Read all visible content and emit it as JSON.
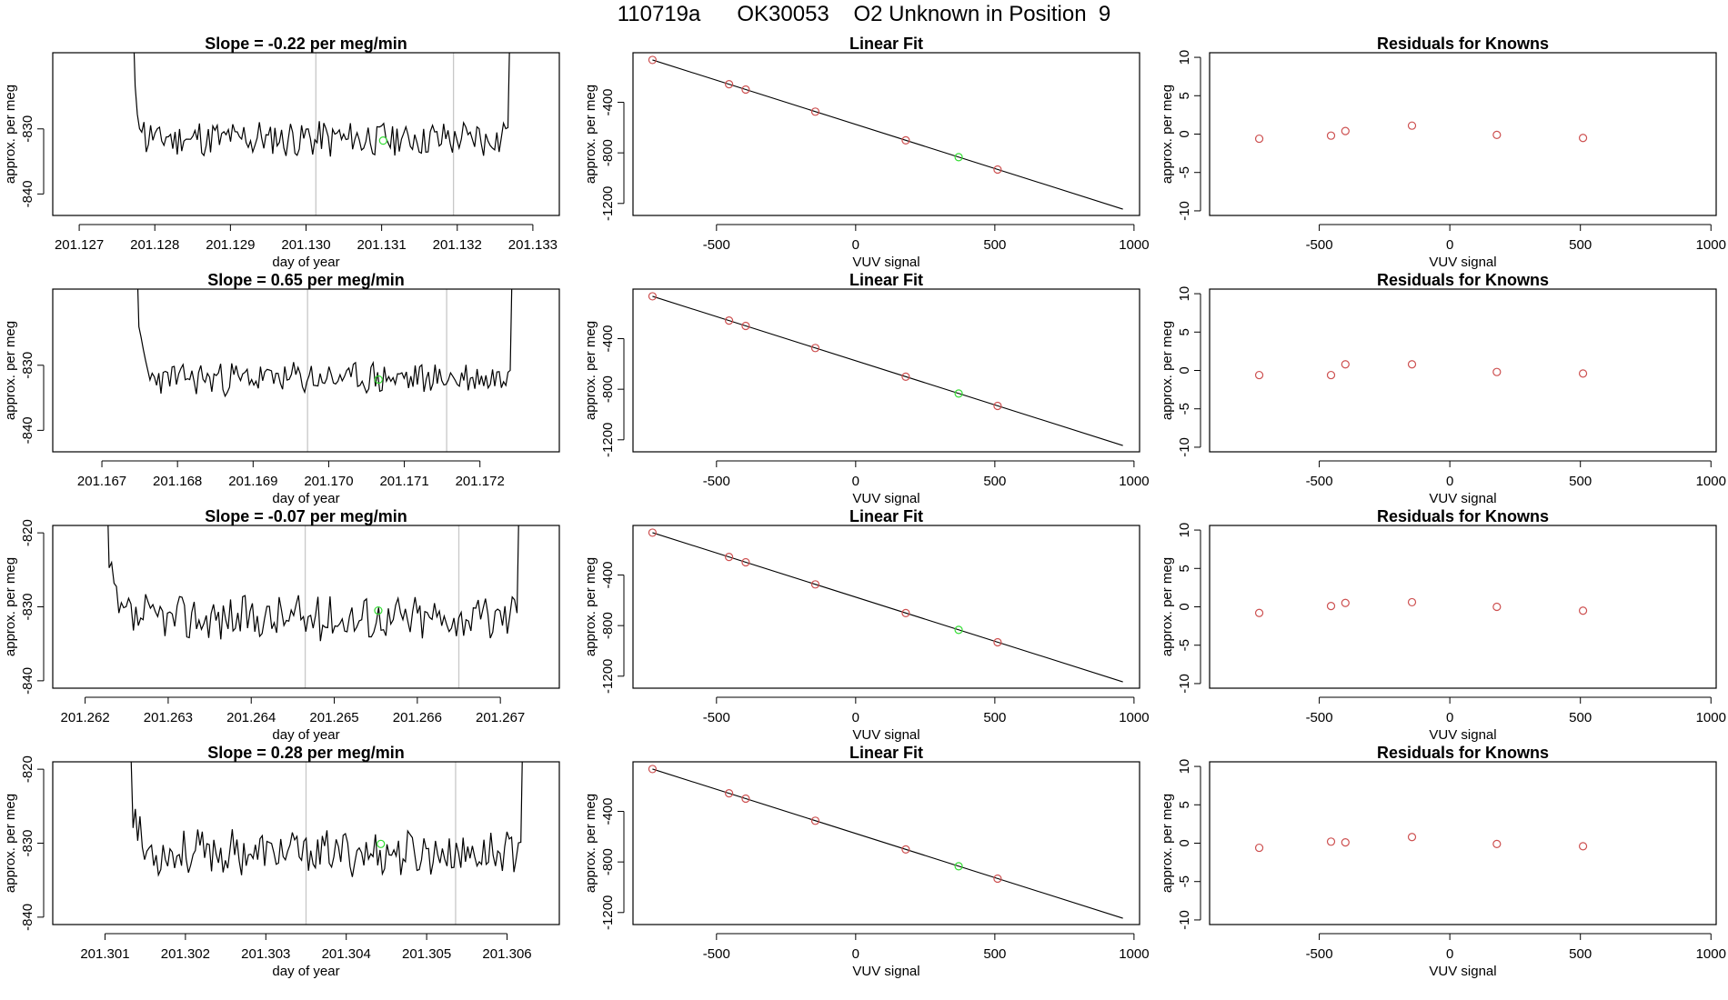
{
  "page_title": "110719a      OK30053    O2 Unknown in Position  9",
  "colors": {
    "line": "#000000",
    "box": "#000000",
    "vline": "#c8c8c8",
    "known": "#cd5050",
    "unknown": "#33dd33"
  },
  "chart_data": [
    {
      "id": "r1-ts",
      "type": "line",
      "title": "Slope =  -0.22  per meg/min",
      "xlabel": "day of year",
      "ylabel": "approx. per meg",
      "xlim": [
        201.12665,
        201.13335
      ],
      "ylim": [
        -843.3,
        -818.3
      ],
      "xticks": [
        {
          "v": 201.127,
          "t": "201.127"
        },
        {
          "v": 201.128,
          "t": "201.128"
        },
        {
          "v": 201.129,
          "t": "201.129"
        },
        {
          "v": 201.13,
          "t": "201.130"
        },
        {
          "v": 201.131,
          "t": "201.131"
        },
        {
          "v": 201.132,
          "t": "201.132"
        },
        {
          "v": 201.133,
          "t": "201.133"
        }
      ],
      "yticks": [
        {
          "v": -830,
          "t": "-830"
        },
        {
          "v": -840,
          "t": "-840"
        }
      ],
      "vlines": [
        201.13013,
        201.13195
      ],
      "x_start": 201.12771,
      "x_end": 201.1327,
      "y_top_start": -812,
      "y_top_end": -812,
      "baseline": -831.5,
      "amp": 2.6,
      "seed": 11,
      "marker": {
        "x": 201.13102,
        "y": -831.8
      }
    },
    {
      "id": "r1-fit",
      "type": "scatter",
      "title": "Linear Fit",
      "xlabel": "VUV signal",
      "ylabel": "approx. per meg",
      "xlim": [
        -800,
        1020
      ],
      "ylim": [
        -1295,
        -8
      ],
      "xticks": [
        {
          "v": -500,
          "t": "-500"
        },
        {
          "v": 0,
          "t": "0"
        },
        {
          "v": 500,
          "t": "500"
        },
        {
          "v": 1000,
          "t": "1000"
        }
      ],
      "yticks": [
        {
          "v": -400,
          "t": "-400"
        },
        {
          "v": -800,
          "t": "-800"
        },
        {
          "v": -1200,
          "t": "-1200"
        }
      ],
      "fit": {
        "x1": -730,
        "y1": -65,
        "x2": 960,
        "y2": -1245
      },
      "points": [
        {
          "x": -730,
          "y": -65
        },
        {
          "x": -455,
          "y": -257
        },
        {
          "x": -395,
          "y": -299
        },
        {
          "x": -145,
          "y": -474
        },
        {
          "x": 180,
          "y": -701
        },
        {
          "x": 510,
          "y": -932
        }
      ],
      "unknown": {
        "x": 370,
        "y": -834
      }
    },
    {
      "id": "r1-res",
      "type": "scatter",
      "title": "Residuals for Knowns",
      "xlabel": "VUV signal",
      "ylabel": "approx. per meg",
      "xlim": [
        -920,
        1020
      ],
      "ylim": [
        -10.6,
        10.6
      ],
      "xticks": [
        {
          "v": -500,
          "t": "-500"
        },
        {
          "v": 0,
          "t": "0"
        },
        {
          "v": 500,
          "t": "500"
        },
        {
          "v": 1000,
          "t": "1000"
        }
      ],
      "yticks": [
        {
          "v": 10,
          "t": "10"
        },
        {
          "v": 5,
          "t": "5"
        },
        {
          "v": 0,
          "t": "0"
        },
        {
          "v": -5,
          "t": "-5"
        },
        {
          "v": -10,
          "t": "-10"
        }
      ],
      "points": [
        {
          "x": -730,
          "y": -0.6
        },
        {
          "x": -455,
          "y": -0.2
        },
        {
          "x": -400,
          "y": 0.4
        },
        {
          "x": -145,
          "y": 1.1
        },
        {
          "x": 180,
          "y": -0.1
        },
        {
          "x": 510,
          "y": -0.5
        }
      ]
    },
    {
      "id": "r2-ts",
      "type": "line",
      "title": "Slope =  0.65  per meg/min",
      "xlabel": "day of year",
      "ylabel": "approx. per meg",
      "xlim": [
        201.16635,
        201.17305
      ],
      "ylim": [
        -843.3,
        -818.3
      ],
      "xticks": [
        {
          "v": 201.167,
          "t": "201.167"
        },
        {
          "v": 201.168,
          "t": "201.168"
        },
        {
          "v": 201.169,
          "t": "201.169"
        },
        {
          "v": 201.17,
          "t": "201.170"
        },
        {
          "v": 201.171,
          "t": "201.171"
        },
        {
          "v": 201.172,
          "t": "201.172"
        }
      ],
      "yticks": [
        {
          "v": -830,
          "t": "-830"
        },
        {
          "v": -840,
          "t": "-840"
        }
      ],
      "vlines": [
        201.16972,
        201.17156
      ],
      "x_start": 201.16746,
      "x_end": 201.17243,
      "y_top_start": -812,
      "y_top_end": -812,
      "baseline": -832.0,
      "amp": 2.2,
      "seed": 23,
      "marker": {
        "x": 201.17066,
        "y": -832.2
      }
    },
    {
      "id": "r2-fit",
      "type": "scatter",
      "title": "Linear Fit",
      "xlabel": "VUV signal",
      "ylabel": "approx. per meg",
      "xlim": [
        -800,
        1020
      ],
      "ylim": [
        -1295,
        -8
      ],
      "xticks": [
        {
          "v": -500,
          "t": "-500"
        },
        {
          "v": 0,
          "t": "0"
        },
        {
          "v": 500,
          "t": "500"
        },
        {
          "v": 1000,
          "t": "1000"
        }
      ],
      "yticks": [
        {
          "v": -400,
          "t": "-400"
        },
        {
          "v": -800,
          "t": "-800"
        },
        {
          "v": -1200,
          "t": "-1200"
        }
      ],
      "fit": {
        "x1": -730,
        "y1": -65,
        "x2": 960,
        "y2": -1245
      },
      "points": [
        {
          "x": -730,
          "y": -65
        },
        {
          "x": -455,
          "y": -257
        },
        {
          "x": -395,
          "y": -299
        },
        {
          "x": -145,
          "y": -474
        },
        {
          "x": 180,
          "y": -701
        },
        {
          "x": 510,
          "y": -932
        }
      ],
      "unknown": {
        "x": 370,
        "y": -834
      }
    },
    {
      "id": "r2-res",
      "type": "scatter",
      "title": "Residuals for Knowns",
      "xlabel": "VUV signal",
      "ylabel": "approx. per meg",
      "xlim": [
        -920,
        1020
      ],
      "ylim": [
        -10.6,
        10.6
      ],
      "xticks": [
        {
          "v": -500,
          "t": "-500"
        },
        {
          "v": 0,
          "t": "0"
        },
        {
          "v": 500,
          "t": "500"
        },
        {
          "v": 1000,
          "t": "1000"
        }
      ],
      "yticks": [
        {
          "v": 10,
          "t": "10"
        },
        {
          "v": 5,
          "t": "5"
        },
        {
          "v": 0,
          "t": "0"
        },
        {
          "v": -5,
          "t": "-5"
        },
        {
          "v": -10,
          "t": "-10"
        }
      ],
      "points": [
        {
          "x": -730,
          "y": -0.6
        },
        {
          "x": -455,
          "y": -0.6
        },
        {
          "x": -400,
          "y": 0.8
        },
        {
          "x": -145,
          "y": 0.8
        },
        {
          "x": 180,
          "y": -0.2
        },
        {
          "x": 510,
          "y": -0.4
        }
      ]
    },
    {
      "id": "r3-ts",
      "type": "line",
      "title": "Slope =  -0.07  per meg/min",
      "xlabel": "day of year",
      "ylabel": "approx. per meg",
      "xlim": [
        201.26161,
        201.26771
      ],
      "ylim": [
        -841.0,
        -819.0
      ],
      "xticks": [
        {
          "v": 201.262,
          "t": "201.262"
        },
        {
          "v": 201.263,
          "t": "201.263"
        },
        {
          "v": 201.264,
          "t": "201.264"
        },
        {
          "v": 201.265,
          "t": "201.265"
        },
        {
          "v": 201.266,
          "t": "201.266"
        },
        {
          "v": 201.267,
          "t": "201.267"
        }
      ],
      "yticks": [
        {
          "v": -820,
          "t": "-820"
        },
        {
          "v": -830,
          "t": "-830"
        },
        {
          "v": -840,
          "t": "-840"
        }
      ],
      "vlines": [
        201.26465,
        201.2665
      ],
      "x_start": 201.26226,
      "x_end": 201.26723,
      "y_top_start": -812,
      "y_top_end": -812,
      "baseline": -831.5,
      "amp": 2.8,
      "seed": 37,
      "marker": {
        "x": 201.26553,
        "y": -830.5
      }
    },
    {
      "id": "r3-fit",
      "type": "scatter",
      "title": "Linear Fit",
      "xlabel": "VUV signal",
      "ylabel": "approx. per meg",
      "xlim": [
        -800,
        1020
      ],
      "ylim": [
        -1295,
        -8
      ],
      "xticks": [
        {
          "v": -500,
          "t": "-500"
        },
        {
          "v": 0,
          "t": "0"
        },
        {
          "v": 500,
          "t": "500"
        },
        {
          "v": 1000,
          "t": "1000"
        }
      ],
      "yticks": [
        {
          "v": -400,
          "t": "-400"
        },
        {
          "v": -800,
          "t": "-800"
        },
        {
          "v": -1200,
          "t": "-1200"
        }
      ],
      "fit": {
        "x1": -730,
        "y1": -65,
        "x2": 960,
        "y2": -1245
      },
      "points": [
        {
          "x": -730,
          "y": -65
        },
        {
          "x": -455,
          "y": -257
        },
        {
          "x": -395,
          "y": -299
        },
        {
          "x": -145,
          "y": -474
        },
        {
          "x": 180,
          "y": -701
        },
        {
          "x": 510,
          "y": -932
        }
      ],
      "unknown": {
        "x": 370,
        "y": -834
      }
    },
    {
      "id": "r3-res",
      "type": "scatter",
      "title": "Residuals for Knowns",
      "xlabel": "VUV signal",
      "ylabel": "approx. per meg",
      "xlim": [
        -920,
        1020
      ],
      "ylim": [
        -10.6,
        10.6
      ],
      "xticks": [
        {
          "v": -500,
          "t": "-500"
        },
        {
          "v": 0,
          "t": "0"
        },
        {
          "v": 500,
          "t": "500"
        },
        {
          "v": 1000,
          "t": "1000"
        }
      ],
      "yticks": [
        {
          "v": 10,
          "t": "10"
        },
        {
          "v": 5,
          "t": "5"
        },
        {
          "v": 0,
          "t": "0"
        },
        {
          "v": -5,
          "t": "-5"
        },
        {
          "v": -10,
          "t": "-10"
        }
      ],
      "points": [
        {
          "x": -730,
          "y": -0.8
        },
        {
          "x": -455,
          "y": 0.1
        },
        {
          "x": -400,
          "y": 0.5
        },
        {
          "x": -145,
          "y": 0.6
        },
        {
          "x": 180,
          "y": 0.0
        },
        {
          "x": 510,
          "y": -0.5
        }
      ]
    },
    {
      "id": "r4-ts",
      "type": "line",
      "title": "Slope =  0.28  per meg/min",
      "xlabel": "day of year",
      "ylabel": "approx. per meg",
      "xlim": [
        201.30035,
        201.30665
      ],
      "ylim": [
        -841.0,
        -819.0
      ],
      "xticks": [
        {
          "v": 201.301,
          "t": "201.301"
        },
        {
          "v": 201.302,
          "t": "201.302"
        },
        {
          "v": 201.303,
          "t": "201.303"
        },
        {
          "v": 201.304,
          "t": "201.304"
        },
        {
          "v": 201.305,
          "t": "201.305"
        },
        {
          "v": 201.306,
          "t": "201.306"
        }
      ],
      "yticks": [
        {
          "v": -820,
          "t": "-820"
        },
        {
          "v": -830,
          "t": "-830"
        },
        {
          "v": -840,
          "t": "-840"
        }
      ],
      "vlines": [
        201.3035,
        201.30536
      ],
      "x_start": 201.30132,
      "x_end": 201.3062,
      "y_top_start": -817,
      "y_top_end": -812,
      "baseline": -831.3,
      "amp": 2.7,
      "seed": 53,
      "marker": {
        "x": 201.30443,
        "y": -830.1
      }
    },
    {
      "id": "r4-fit",
      "type": "scatter",
      "title": "Linear Fit",
      "xlabel": "VUV signal",
      "ylabel": "approx. per meg",
      "xlim": [
        -800,
        1020
      ],
      "ylim": [
        -1295,
        -8
      ],
      "xticks": [
        {
          "v": -500,
          "t": "-500"
        },
        {
          "v": 0,
          "t": "0"
        },
        {
          "v": 500,
          "t": "500"
        },
        {
          "v": 1000,
          "t": "1000"
        }
      ],
      "yticks": [
        {
          "v": -400,
          "t": "-400"
        },
        {
          "v": -800,
          "t": "-800"
        },
        {
          "v": -1200,
          "t": "-1200"
        }
      ],
      "fit": {
        "x1": -730,
        "y1": -65,
        "x2": 960,
        "y2": -1245
      },
      "points": [
        {
          "x": -730,
          "y": -65
        },
        {
          "x": -455,
          "y": -257
        },
        {
          "x": -395,
          "y": -299
        },
        {
          "x": -145,
          "y": -474
        },
        {
          "x": 180,
          "y": -701
        },
        {
          "x": 510,
          "y": -932
        }
      ],
      "unknown": {
        "x": 370,
        "y": -834
      }
    },
    {
      "id": "r4-res",
      "type": "scatter",
      "title": "Residuals for Knowns",
      "xlabel": "VUV signal",
      "ylabel": "approx. per meg",
      "xlim": [
        -920,
        1020
      ],
      "ylim": [
        -10.6,
        10.6
      ],
      "xticks": [
        {
          "v": -500,
          "t": "-500"
        },
        {
          "v": 0,
          "t": "0"
        },
        {
          "v": 500,
          "t": "500"
        },
        {
          "v": 1000,
          "t": "1000"
        }
      ],
      "yticks": [
        {
          "v": 10,
          "t": "10"
        },
        {
          "v": 5,
          "t": "5"
        },
        {
          "v": 0,
          "t": "0"
        },
        {
          "v": -5,
          "t": "-5"
        },
        {
          "v": -10,
          "t": "-10"
        }
      ],
      "points": [
        {
          "x": -730,
          "y": -0.6
        },
        {
          "x": -455,
          "y": 0.2
        },
        {
          "x": -400,
          "y": 0.1
        },
        {
          "x": -145,
          "y": 0.8
        },
        {
          "x": 180,
          "y": -0.1
        },
        {
          "x": 510,
          "y": -0.4
        }
      ]
    }
  ]
}
